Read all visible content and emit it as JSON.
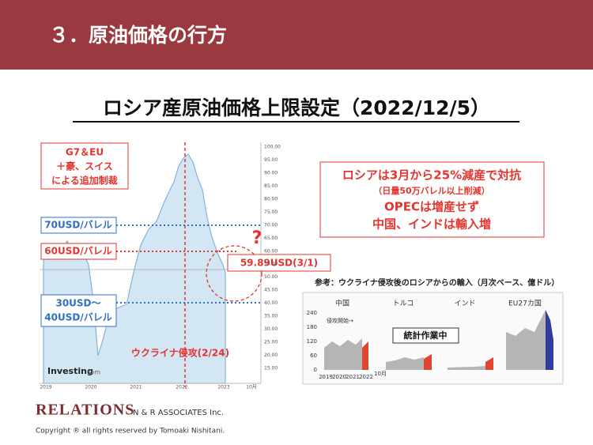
{
  "header": {
    "title": "３．原油価格の行方"
  },
  "subtitle": "ロシア産原油価格上限設定（2022/12/5）",
  "price_chart": {
    "y_tick_labels": [
      "100.00",
      "95.00",
      "90.00",
      "85.00",
      "80.00",
      "75.00",
      "70.00",
      "65.00",
      "60.00",
      "55.00",
      "50.00",
      "45.00",
      "40.00",
      "35.00",
      "30.00",
      "25.00",
      "20.00",
      "15.00"
    ],
    "x_tick_labels": [
      "2019",
      "2020",
      "2021",
      "2022",
      "2023",
      "10月"
    ],
    "source": "Investing",
    "source_suffix": "com"
  },
  "annotations": {
    "sanctions": [
      "G7＆EU",
      "＋豪、スイス",
      "による追加制裁"
    ],
    "level_70": "70USD/バレル",
    "level_60": "60USD/バレル",
    "level_30_40": [
      "30USD～",
      "40USD/バレル"
    ],
    "question": "?",
    "current_price": "59.89USD(3/1)",
    "invasion": "ウクライナ侵攻(2/24)"
  },
  "note_box": {
    "lines": [
      "ロシアは3月から25%減産で対抗",
      "（日量50万バレル以上削減）",
      "OPECは増産せず",
      "中国、インドは輸入増"
    ]
  },
  "inset": {
    "caption": "参考：ウクライナ侵攻後のロシアからの輸入（月次ベース、億ドル）",
    "panels": [
      "中国",
      "トルコ",
      "インド",
      "EU27カ国"
    ],
    "y_tick_labels": [
      "240",
      "180",
      "120",
      "60",
      "0"
    ],
    "marker": "侵攻開始→",
    "status": "統計作業中",
    "x_tick_labels": [
      "2019",
      "2020",
      "2021",
      "2022"
    ],
    "x_end_label": "10月"
  },
  "footer": {
    "brand": "RELATIONS",
    "company": "N & R ASSOCIATES Inc.",
    "copyright": "Copyright ® all rights reserved by Tomoaki Nishitani."
  }
}
